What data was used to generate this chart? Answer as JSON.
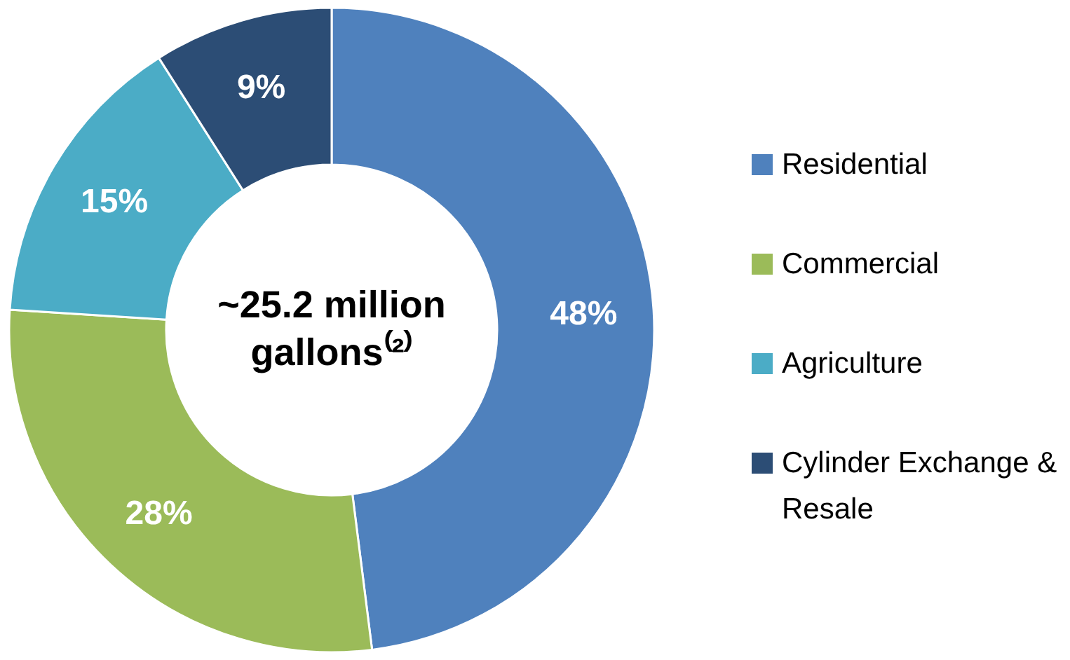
{
  "chart_data": {
    "type": "donut",
    "title": "~25.2 million gallons⁽²⁾",
    "categories": [
      "Residential",
      "Commercial",
      "Agriculture",
      "Cylinder Exchange & Resale"
    ],
    "values": [
      48,
      28,
      15,
      9
    ],
    "colors": [
      "#4f81bd",
      "#9bbb59",
      "#4bacc6",
      "#2c4d75"
    ],
    "value_labels": [
      "48%",
      "28%",
      "15%",
      "9%"
    ],
    "legend": "right"
  }
}
